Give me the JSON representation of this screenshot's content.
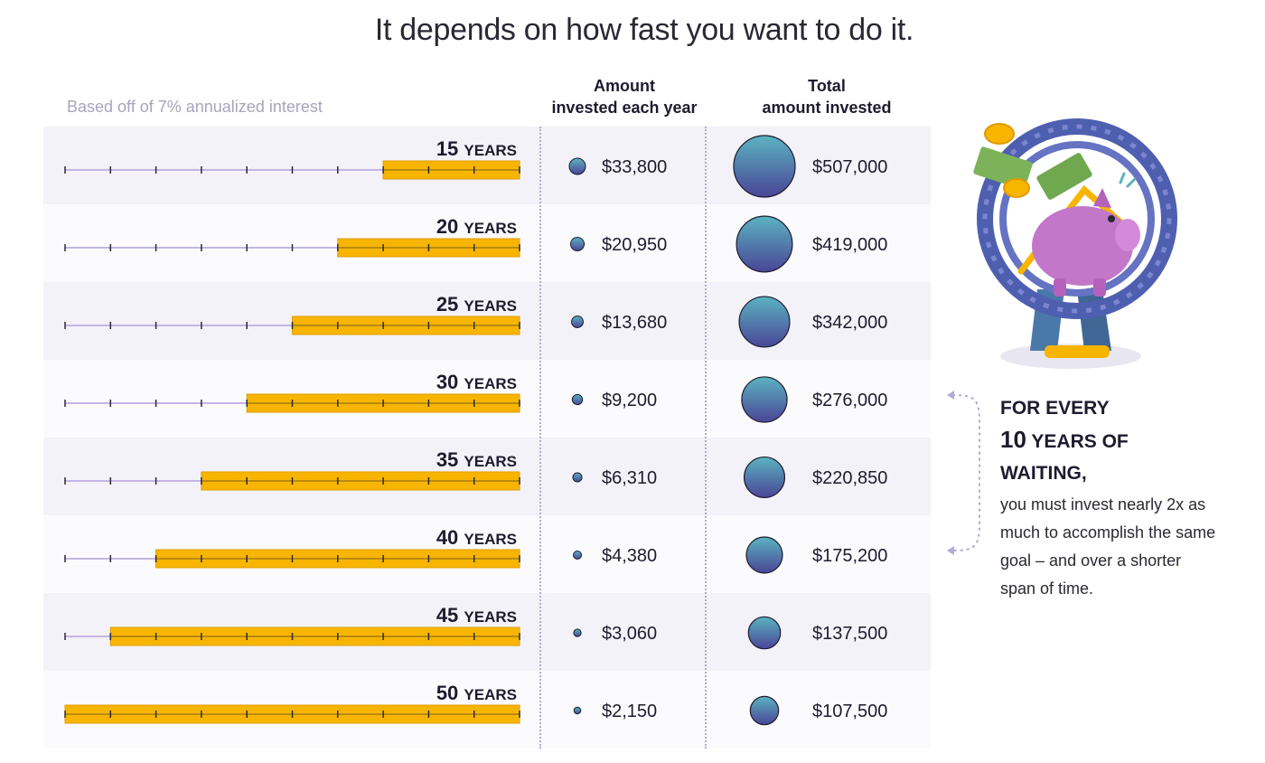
{
  "title": "It depends on how fast you want to do it.",
  "note": "Based off of 7% annualized interest",
  "columns": {
    "annual_line1": "Amount",
    "annual_line2": "invested each year",
    "total_line1": "Total",
    "total_line2": "amount invested"
  },
  "chart_data": {
    "type": "table",
    "axis_max_years": 50,
    "year_unit": "YEARS",
    "rows": [
      {
        "years": 15,
        "annual": "$33,800",
        "annual_value": 33800,
        "total": "$507,000",
        "total_value": 507000
      },
      {
        "years": 20,
        "annual": "$20,950",
        "annual_value": 20950,
        "total": "$419,000",
        "total_value": 419000
      },
      {
        "years": 25,
        "annual": "$13,680",
        "annual_value": 13680,
        "total": "$342,000",
        "total_value": 342000
      },
      {
        "years": 30,
        "annual": "$9,200",
        "annual_value": 9200,
        "total": "$276,000",
        "total_value": 276000
      },
      {
        "years": 35,
        "annual": "$6,310",
        "annual_value": 6310,
        "total": "$220,850",
        "total_value": 220850
      },
      {
        "years": 40,
        "annual": "$4,380",
        "annual_value": 4380,
        "total": "$175,200",
        "total_value": 175200
      },
      {
        "years": 45,
        "annual": "$3,060",
        "annual_value": 3060,
        "total": "$137,500",
        "total_value": 137500
      },
      {
        "years": 50,
        "annual": "$2,150",
        "annual_value": 2150,
        "total": "$107,500",
        "total_value": 107500
      }
    ]
  },
  "sidebar": {
    "head_line1": "FOR EVERY",
    "head_num": "10",
    "head_line2_rest": "YEARS OF",
    "head_line3": "WAITING,",
    "body": "you must invest nearly 2x as much to accomplish the same goal – and over a shorter span of time."
  },
  "colors": {
    "bar": "#f7b500",
    "bar_edge": "#e09a00",
    "line": "#c3b5e3",
    "tick": "#2a2833",
    "bubble_top": "#5bb3c1",
    "bubble_bottom": "#4a4596",
    "divider": "#b4a9d9"
  }
}
